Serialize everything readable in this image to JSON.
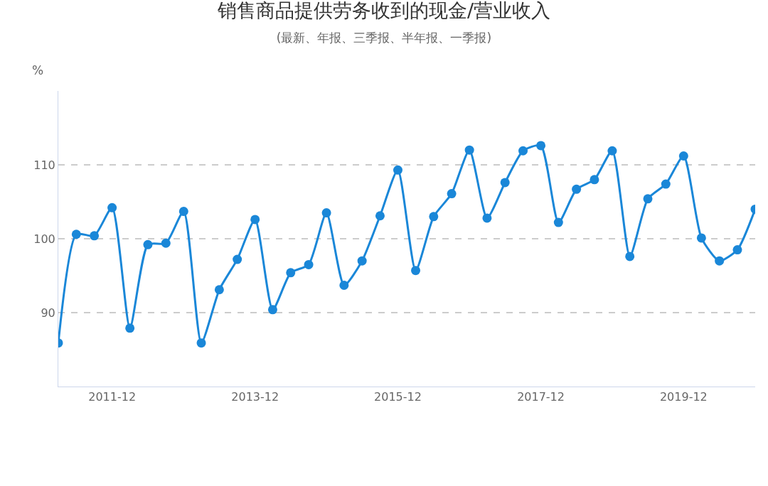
{
  "chart_data": {
    "type": "line",
    "title": "销售商品提供劳务收到的现金/营业收入",
    "subtitle": "(最新、年报、三季报、半年报、一季报)",
    "ylabel": "%",
    "x": [
      "2011-03",
      "2011-06",
      "2011-09",
      "2011-12",
      "2012-03",
      "2012-06",
      "2012-09",
      "2012-12",
      "2013-03",
      "2013-06",
      "2013-09",
      "2013-12",
      "2014-03",
      "2014-06",
      "2014-09",
      "2014-12",
      "2015-03",
      "2015-06",
      "2015-09",
      "2015-12",
      "2016-03",
      "2016-06",
      "2016-09",
      "2016-12",
      "2017-03",
      "2017-06",
      "2017-09",
      "2017-12",
      "2018-03",
      "2018-06",
      "2018-09",
      "2018-12",
      "2019-03",
      "2019-06",
      "2019-09",
      "2019-12",
      "2020-03",
      "2020-06",
      "2020-09",
      "2020-12"
    ],
    "series": [
      {
        "color": "#1a87d8",
        "values": [
          85.9,
          100.6,
          100.4,
          104.2,
          87.9,
          99.2,
          99.4,
          103.7,
          85.9,
          93.1,
          97.2,
          102.6,
          90.4,
          95.4,
          96.5,
          103.5,
          93.7,
          97.0,
          103.1,
          109.3,
          95.7,
          103.0,
          106.1,
          112.0,
          102.8,
          107.6,
          111.9,
          112.6,
          102.2,
          106.7,
          108.0,
          111.9,
          97.6,
          105.4,
          107.4,
          111.2,
          100.1,
          97.0,
          98.5,
          104.0
        ]
      }
    ],
    "xlim": [
      "2011-03",
      "2020-12"
    ],
    "xticks": [
      "2011-12",
      "2013-12",
      "2015-12",
      "2017-12",
      "2019-12"
    ],
    "ylim": [
      80,
      120
    ],
    "yticks": [
      90,
      100,
      110
    ],
    "grid": "y",
    "marker": "circle",
    "line_style": "solid",
    "legend": false
  }
}
